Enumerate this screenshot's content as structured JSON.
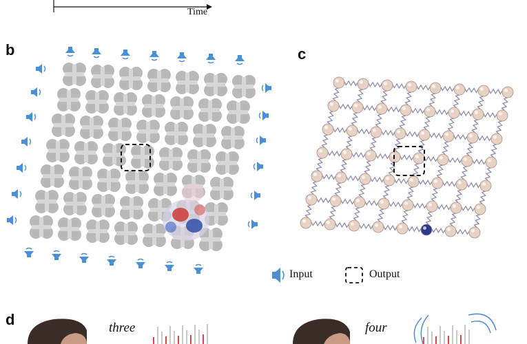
{
  "panel_a": {
    "xlabel": "Time"
  },
  "panel_b": {
    "label": "b"
  },
  "panel_c": {
    "label": "c"
  },
  "panel_d": {
    "label": "d",
    "word_left": "three",
    "word_right": "four"
  },
  "legend": {
    "input_label": "Input",
    "output_label": "Output"
  },
  "colors": {
    "speaker_blue": "#4a90d9",
    "tile_gray": "#b9b9b9",
    "spring": "#8c84a8",
    "ball": "#e8d2c4",
    "ball_highlight": "#2b3a8c"
  }
}
